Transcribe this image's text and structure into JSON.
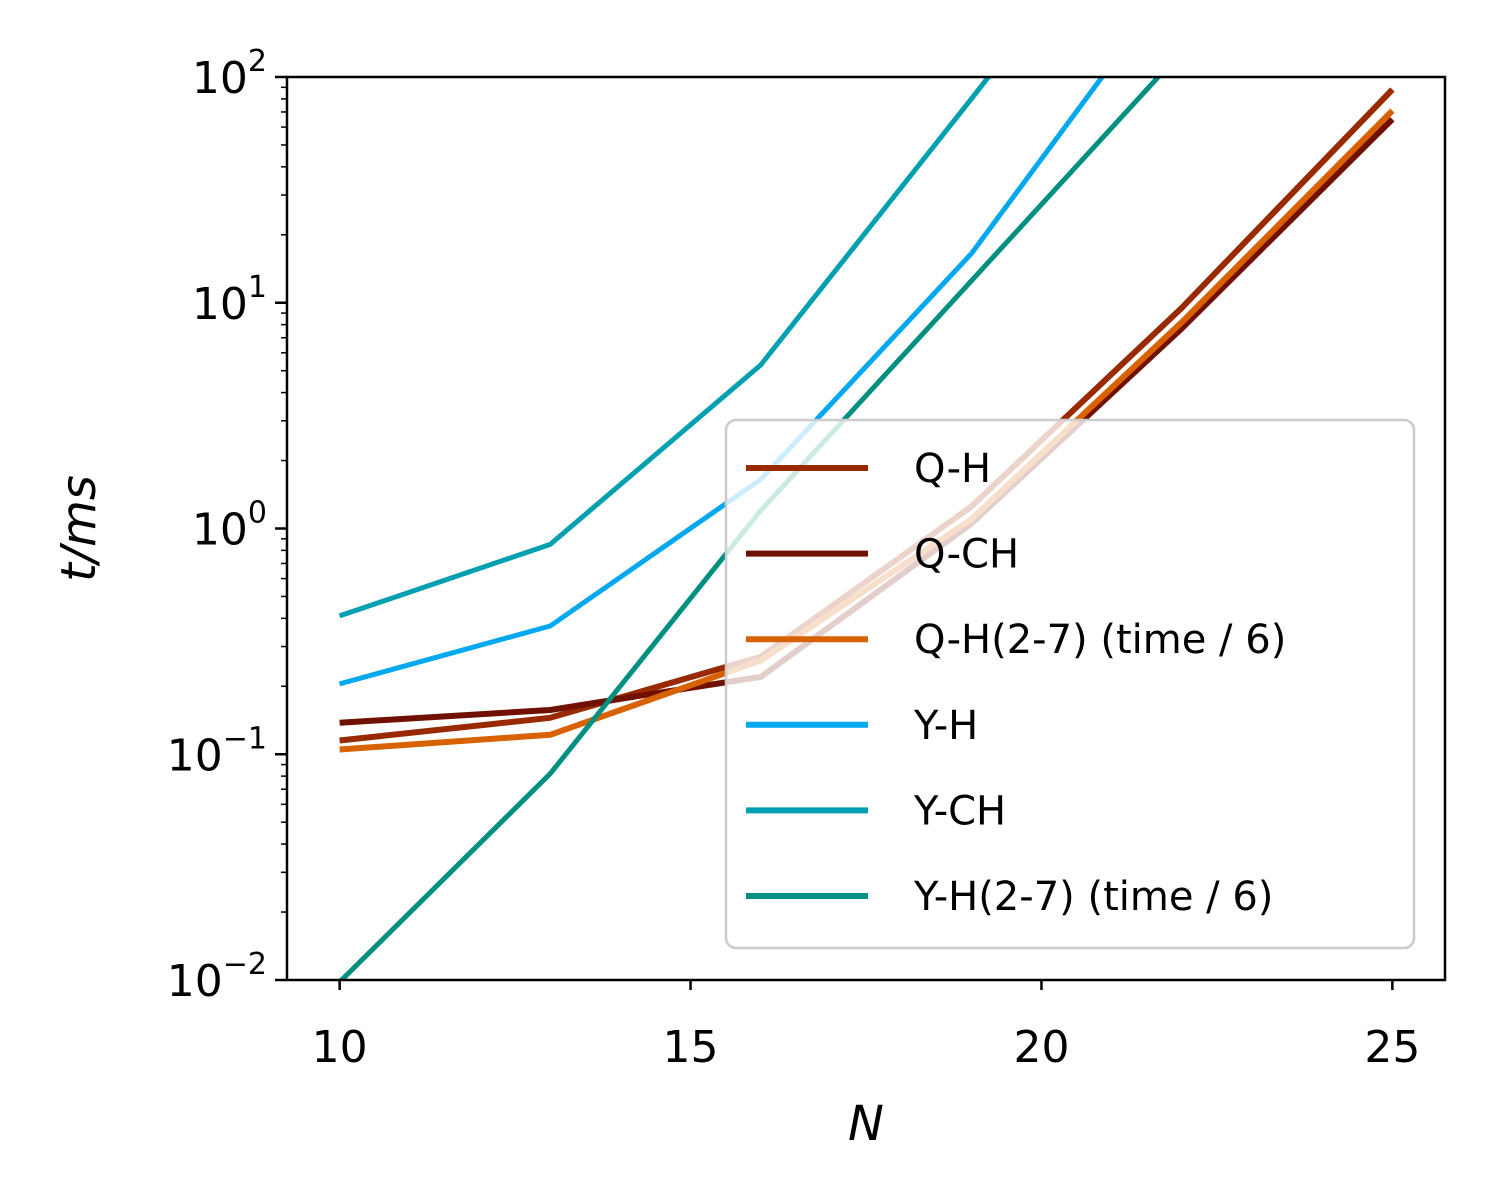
{
  "chart_data": {
    "type": "line",
    "title": "",
    "xlabel": "N",
    "ylabel": "t/ms",
    "xlim": [
      9.25,
      25.75
    ],
    "ylim": [
      0.01,
      100
    ],
    "yscale": "log",
    "xticks": [
      10,
      15,
      20,
      25
    ],
    "xtick_labels": [
      "10",
      "15",
      "20",
      "25"
    ],
    "yticks": [
      0.01,
      0.1,
      1,
      10,
      100
    ],
    "ytick_labels": [
      {
        "base": "10",
        "exp": "−2"
      },
      {
        "base": "10",
        "exp": "−1"
      },
      {
        "base": "10",
        "exp": "0"
      },
      {
        "base": "10",
        "exp": "1"
      },
      {
        "base": "10",
        "exp": "2"
      }
    ],
    "grid": false,
    "legend_position": "lower-right",
    "series": [
      {
        "name": "Q-H",
        "color": "#992a00",
        "width": 6,
        "x": [
          10,
          13,
          16,
          19,
          22,
          25
        ],
        "y": [
          0.115,
          0.145,
          0.27,
          1.25,
          9.5,
          88
        ]
      },
      {
        "name": "Q-CH",
        "color": "#701000",
        "width": 6,
        "x": [
          10,
          13,
          14.2,
          16,
          19,
          22,
          25
        ],
        "y": [
          0.138,
          0.157,
          0.18,
          0.22,
          1.05,
          7.7,
          65
        ]
      },
      {
        "name": "Q-H(2-7) (time / 6)",
        "color": "#d96200",
        "width": 6,
        "x": [
          10,
          13,
          16,
          19,
          22,
          25
        ],
        "y": [
          0.105,
          0.122,
          0.26,
          1.1,
          8.2,
          71
        ]
      },
      {
        "name": "Y-H",
        "color": "#00a8f0",
        "width": 5,
        "x": [
          10,
          13,
          16,
          19,
          22
        ],
        "y": [
          0.205,
          0.37,
          1.65,
          16.5,
          300
        ]
      },
      {
        "name": "Y-CH",
        "color": "#00a0b0",
        "width": 5,
        "x": [
          10,
          13,
          16,
          19,
          20
        ],
        "y": [
          0.41,
          0.85,
          5.3,
          80,
          200
        ]
      },
      {
        "name": "Y-H(2-7) (time / 6)",
        "color": "#009080",
        "width": 5,
        "x": [
          10,
          13,
          16,
          19,
          22
        ],
        "y": [
          0.0098,
          0.082,
          1.2,
          12.5,
          130
        ]
      }
    ]
  }
}
